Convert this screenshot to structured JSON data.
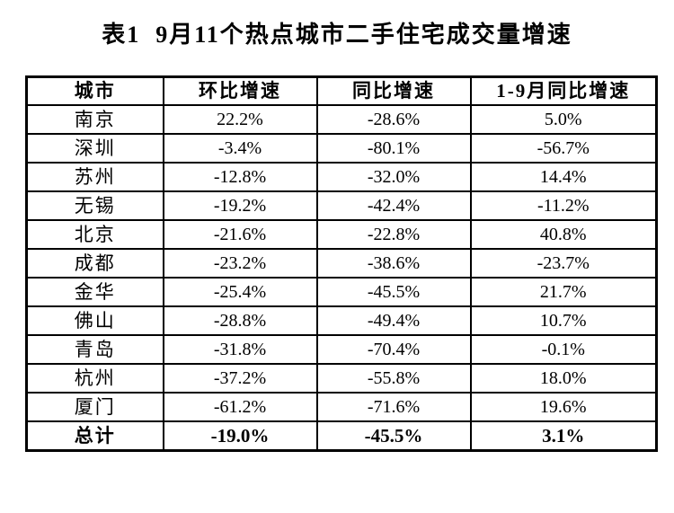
{
  "title": "表1  9月11个热点城市二手住宅成交量增速",
  "table": {
    "headers": [
      "城市",
      "环比增速",
      "同比增速",
      "1-9月同比增速"
    ],
    "rows": [
      {
        "city": "南京",
        "mom": "22.2%",
        "yoy": "-28.6%",
        "ytd": "5.0%"
      },
      {
        "city": "深圳",
        "mom": "-3.4%",
        "yoy": "-80.1%",
        "ytd": "-56.7%"
      },
      {
        "city": "苏州",
        "mom": "-12.8%",
        "yoy": "-32.0%",
        "ytd": "14.4%"
      },
      {
        "city": "无锡",
        "mom": "-19.2%",
        "yoy": "-42.4%",
        "ytd": "-11.2%"
      },
      {
        "city": "北京",
        "mom": "-21.6%",
        "yoy": "-22.8%",
        "ytd": "40.8%"
      },
      {
        "city": "成都",
        "mom": "-23.2%",
        "yoy": "-38.6%",
        "ytd": "-23.7%"
      },
      {
        "city": "金华",
        "mom": "-25.4%",
        "yoy": "-45.5%",
        "ytd": "21.7%"
      },
      {
        "city": "佛山",
        "mom": "-28.8%",
        "yoy": "-49.4%",
        "ytd": "10.7%"
      },
      {
        "city": "青岛",
        "mom": "-31.8%",
        "yoy": "-70.4%",
        "ytd": "-0.1%"
      },
      {
        "city": "杭州",
        "mom": "-37.2%",
        "yoy": "-55.8%",
        "ytd": "18.0%"
      },
      {
        "city": "厦门",
        "mom": "-61.2%",
        "yoy": "-71.6%",
        "ytd": "19.6%"
      }
    ],
    "total": {
      "city": "总计",
      "mom": "-19.0%",
      "yoy": "-45.5%",
      "ytd": "3.1%"
    }
  }
}
